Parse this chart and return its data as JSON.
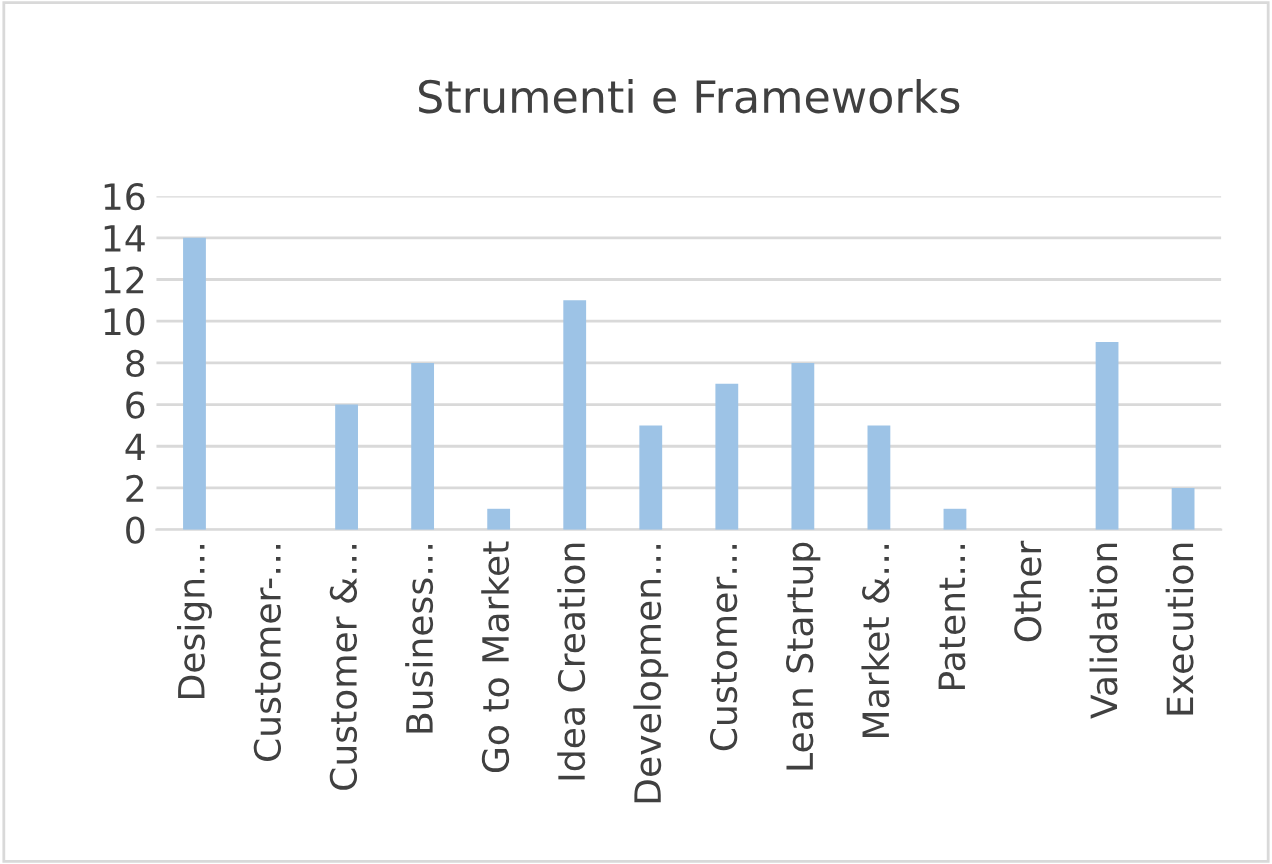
{
  "chart_data": {
    "type": "bar",
    "title": "Strumenti e Frameworks",
    "categories": [
      "Design…",
      "Customer-…",
      "Customer &…",
      "Business…",
      "Go to Market",
      "Idea Creation",
      "Developmen…",
      "Customer…",
      "Lean Startup",
      "Market &…",
      "Patent…",
      "Other",
      "Validation",
      "Execution"
    ],
    "values": [
      14,
      0,
      6,
      8,
      1,
      11,
      5,
      7,
      8,
      5,
      1,
      0,
      9,
      2
    ],
    "color": "#9dc3e6",
    "ylim": [
      0,
      16
    ],
    "yticks": [
      0,
      2,
      4,
      6,
      8,
      10,
      12,
      14,
      16
    ],
    "grid": "y",
    "legend": false
  }
}
